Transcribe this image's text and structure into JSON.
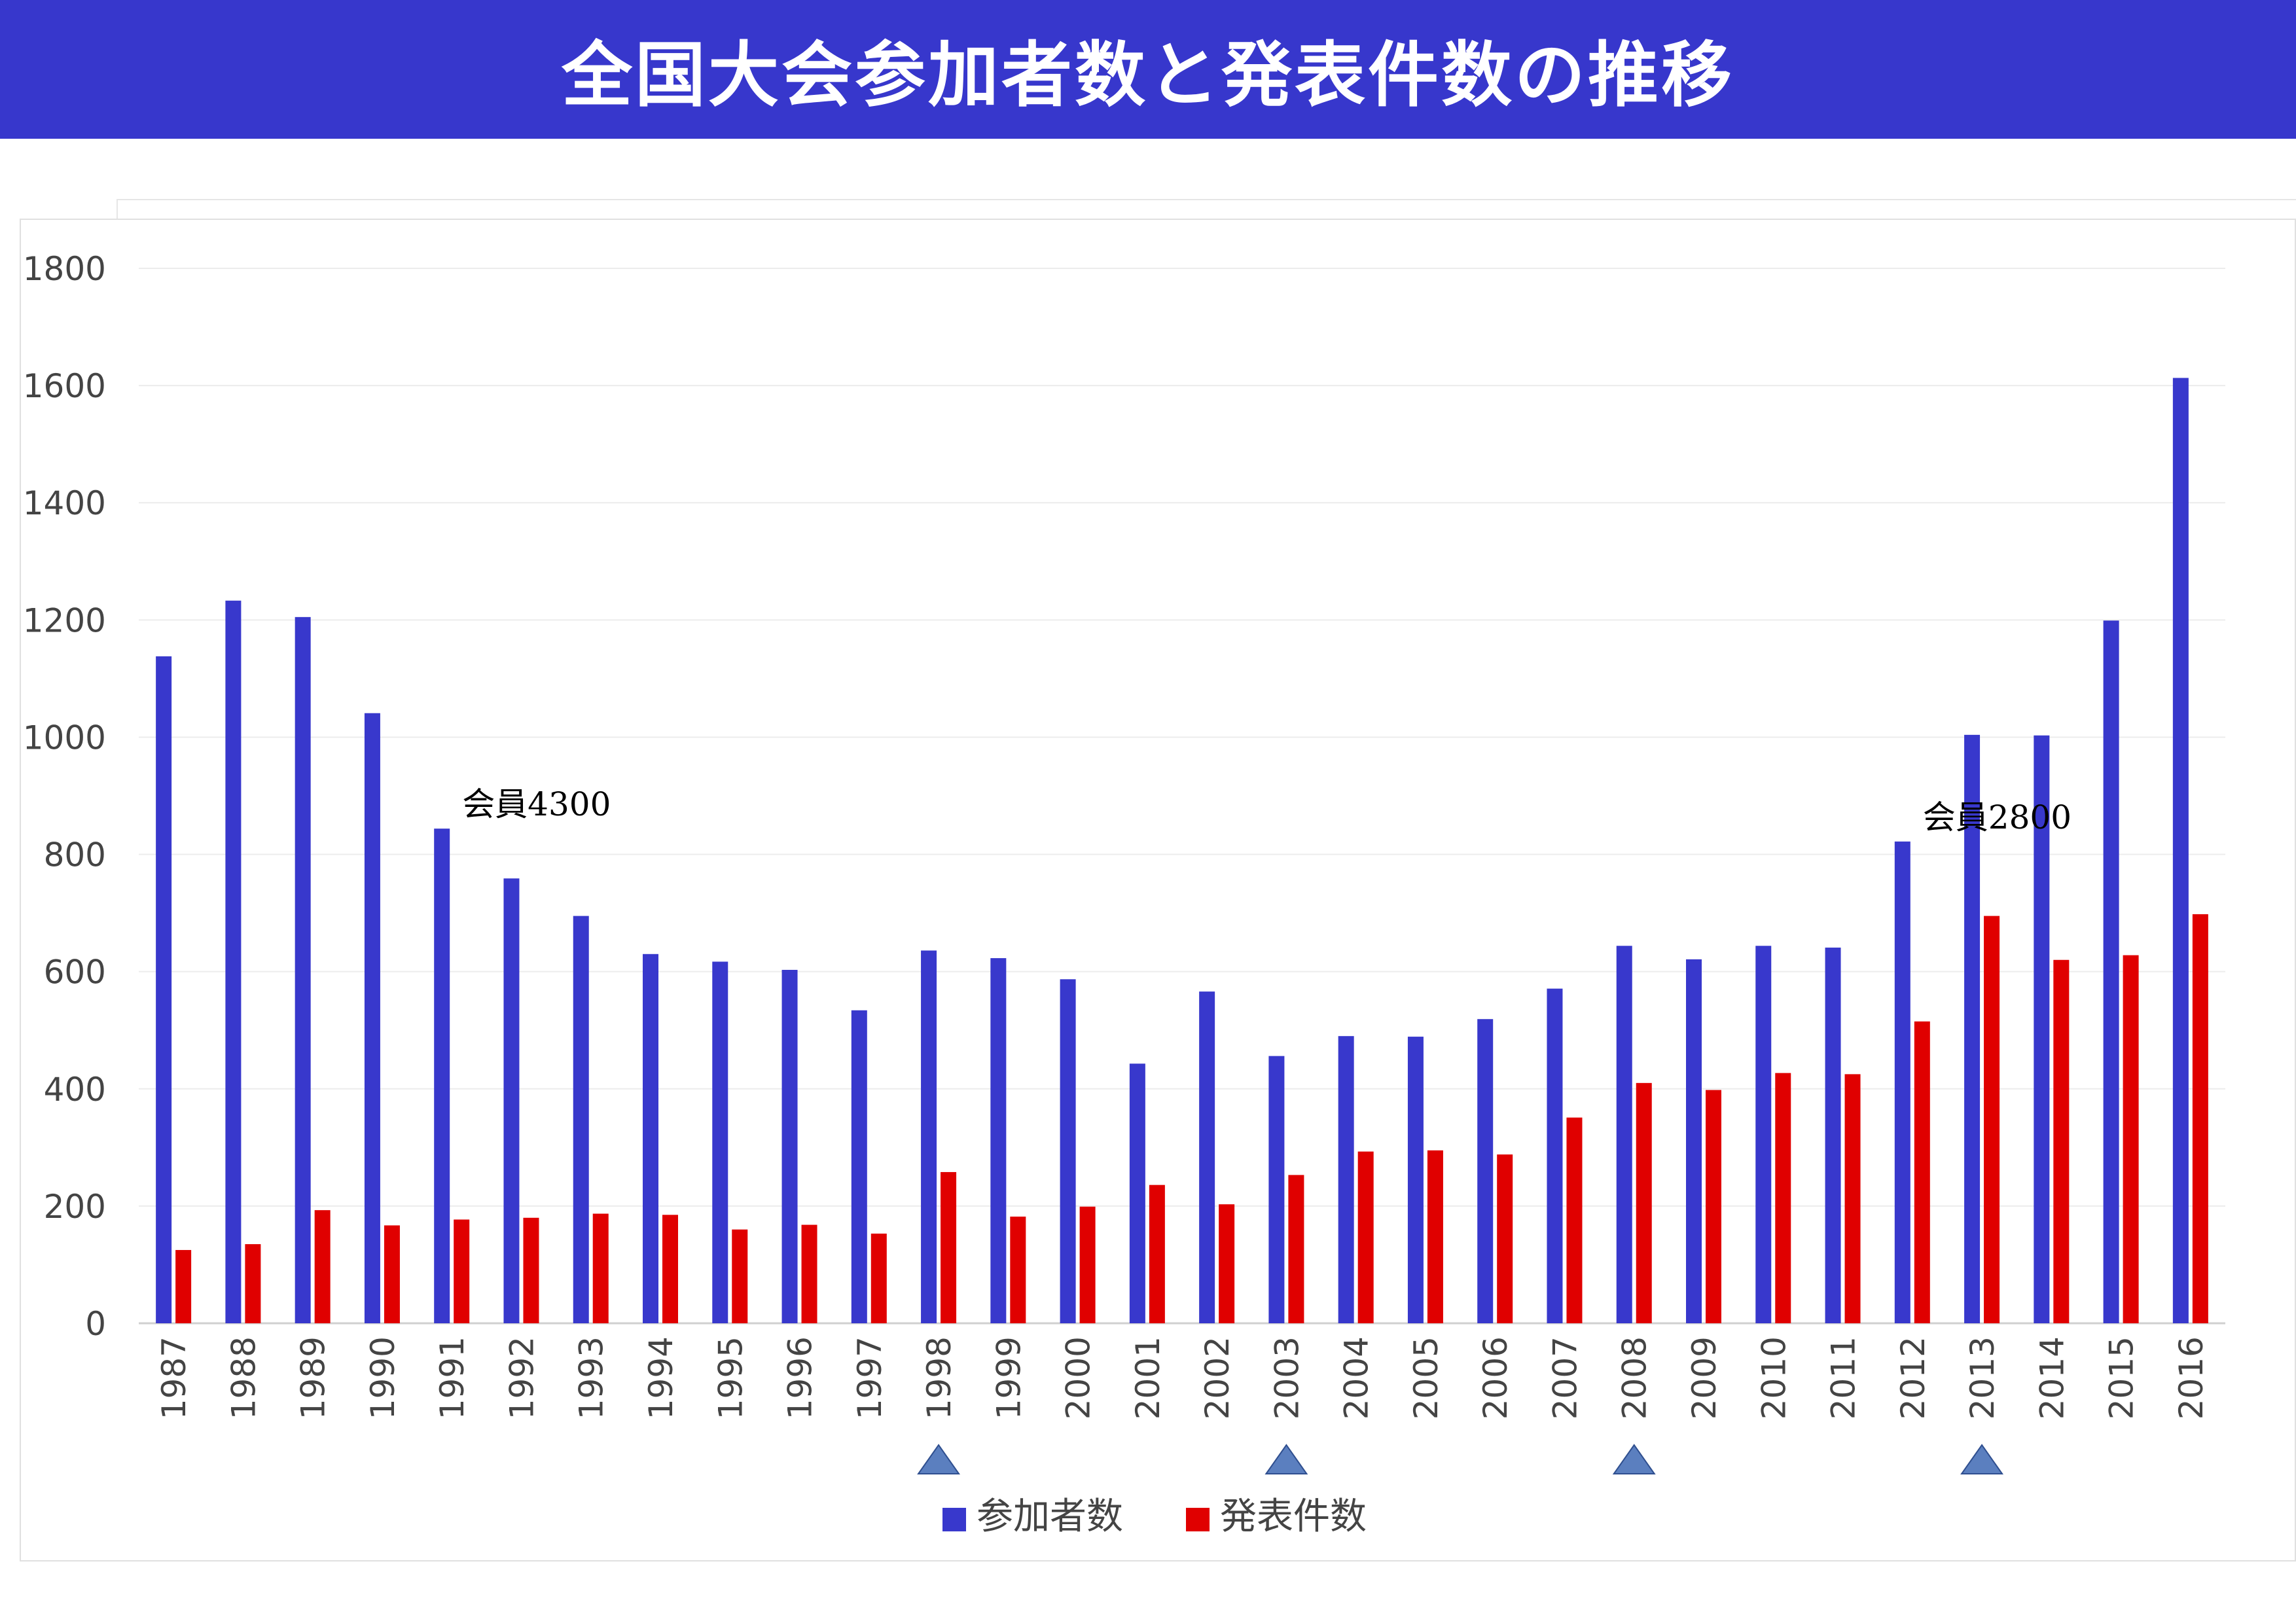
{
  "title": "全国大会参加者数と発表件数の推移",
  "chart_data": {
    "type": "bar",
    "categories": [
      "1987",
      "1988",
      "1989",
      "1990",
      "1991",
      "1992",
      "1993",
      "1994",
      "1995",
      "1996",
      "1997",
      "1998",
      "1999",
      "2000",
      "2001",
      "2002",
      "2003",
      "2004",
      "2005",
      "2006",
      "2007",
      "2008",
      "2009",
      "2010",
      "2011",
      "2012",
      "2013",
      "2014",
      "2015",
      "2016"
    ],
    "series": [
      {
        "name": "参加者数",
        "color": "#3838cc",
        "values": [
          1138,
          1233,
          1205,
          1041,
          844,
          759,
          695,
          630,
          617,
          603,
          534,
          636,
          623,
          587,
          443,
          566,
          456,
          490,
          489,
          519,
          571,
          644,
          621,
          644,
          641,
          822,
          1004,
          1003,
          1199,
          1613
        ]
      },
      {
        "name": "発表件数",
        "color": "#e00000",
        "values": [
          125,
          135,
          193,
          167,
          177,
          180,
          187,
          185,
          160,
          168,
          153,
          258,
          182,
          199,
          236,
          203,
          253,
          293,
          295,
          288,
          351,
          410,
          398,
          427,
          425,
          515,
          695,
          620,
          628,
          698
        ]
      }
    ],
    "ylim": [
      0,
      1800
    ],
    "yticks": [
      0,
      200,
      400,
      600,
      800,
      1000,
      1200,
      1400,
      1600,
      1800
    ],
    "grid": true,
    "legend_position": "bottom",
    "annotations": [
      {
        "text": "会員4300",
        "category": "1991",
        "value": 844
      },
      {
        "text": "会員2800",
        "category": "2012",
        "value": 822
      }
    ],
    "markers": {
      "shape": "triangle",
      "color": "#5b7fbf",
      "categories": [
        "1998",
        "2003",
        "2008",
        "2013"
      ]
    }
  }
}
